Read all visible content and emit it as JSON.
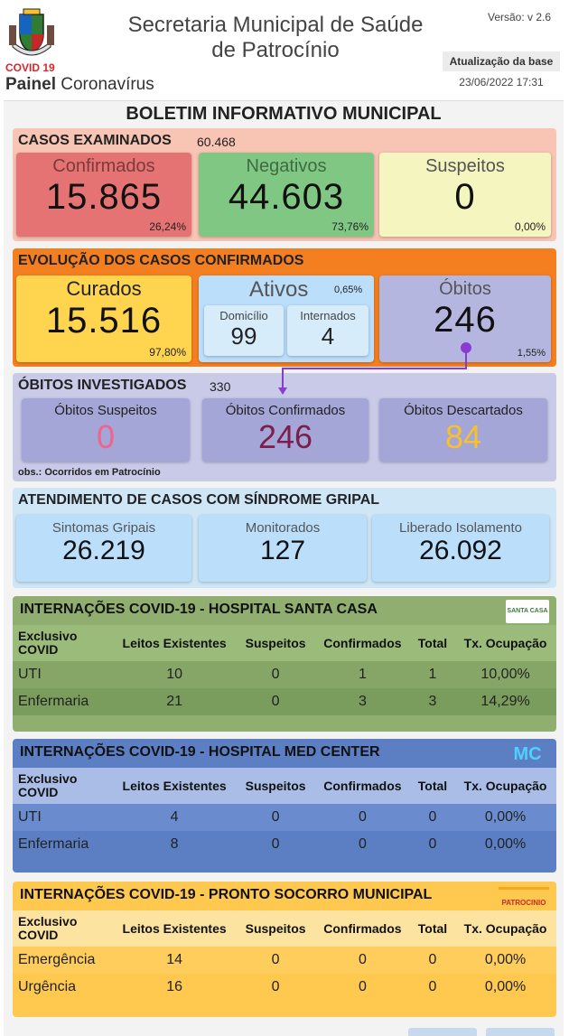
{
  "header": {
    "covid_label": "COVID 19",
    "painel_bold": "Painel",
    "painel_rest": " Coronavírus",
    "title_line1": "Secretaria Municipal de Saúde",
    "title_line2": "de Patrocínio",
    "version": "Versão: v 2.6",
    "update_label": "Atualização da base",
    "update_date": "23/06/2022 17:31"
  },
  "board_title": "BOLETIM INFORMATIVO MUNICIPAL",
  "casos": {
    "title": "CASOS EXAMINADOS",
    "total": "60.468",
    "confirmados": {
      "label": "Confirmados",
      "value": "15.865",
      "pct": "26,24%"
    },
    "negativos": {
      "label": "Negativos",
      "value": "44.603",
      "pct": "73,76%"
    },
    "suspeitos": {
      "label": "Suspeitos",
      "value": "0",
      "pct": "0,00%"
    }
  },
  "evolucao": {
    "title": "EVOLUÇÃO DOS CASOS CONFIRMADOS",
    "curados": {
      "label": "Curados",
      "value": "15.516",
      "pct": "97,80%"
    },
    "ativos": {
      "label": "Ativos",
      "pct": "0,65%",
      "domicilio_label": "Domicílio",
      "domicilio_value": "99",
      "internados_label": "Internados",
      "internados_value": "4"
    },
    "obitos": {
      "label": "Óbitos",
      "value": "246",
      "pct": "1,55%"
    }
  },
  "obitos_inv": {
    "title": "ÓBITOS INVESTIGADOS",
    "total": "330",
    "suspeitos": {
      "label": "Óbitos Suspeitos",
      "value": "0"
    },
    "confirmados": {
      "label": "Óbitos Confirmados",
      "value": "246"
    },
    "descartados": {
      "label": "Óbitos Descartados",
      "value": "84"
    },
    "obs": "obs.: Ocorridos em Patrocínio"
  },
  "atendimento": {
    "title": "ATENDIMENTO DE CASOS COM SÍNDROME GRIPAL",
    "sintomas": {
      "label": "Sintomas Gripais",
      "value": "26.219"
    },
    "monitorados": {
      "label": "Monitorados",
      "value": "127"
    },
    "liberado": {
      "label": "Liberado Isolamento",
      "value": "26.092"
    }
  },
  "tables": {
    "columns": [
      "Exclusivo COVID",
      "Leitos Existentes",
      "Suspeitos",
      "Confirmados",
      "Total",
      "Tx. Ocupação"
    ],
    "santa_casa": {
      "title": "INTERNAÇÕES COVID-19 - HOSPITAL SANTA CASA",
      "logo_text": "SANTA CASA",
      "rows": [
        [
          "UTI",
          "10",
          "0",
          "1",
          "1",
          "10,00%"
        ],
        [
          "Enfermaria",
          "21",
          "0",
          "3",
          "3",
          "14,29%"
        ]
      ]
    },
    "med_center": {
      "title": "INTERNAÇÕES COVID-19 - HOSPITAL MED CENTER",
      "logo_text": "MC",
      "rows": [
        [
          "UTI",
          "4",
          "0",
          "0",
          "0",
          "0,00%"
        ],
        [
          "Enfermaria",
          "8",
          "0",
          "0",
          "0",
          "0,00%"
        ]
      ]
    },
    "pronto_socorro": {
      "title": "INTERNAÇÕES COVID-19 - PRONTO SOCORRO MUNICIPAL",
      "logo_text": "PATROCINIO",
      "rows": [
        [
          "Emergência",
          "14",
          "0",
          "0",
          "0",
          "0,00%"
        ],
        [
          "Urgência",
          "16",
          "0",
          "0",
          "0",
          "0,00%"
        ]
      ]
    }
  },
  "colors": {
    "confirmados": "#e57373",
    "negativos": "#81c784",
    "suspeitos": "#f5f5c0",
    "curados": "#ffd54f",
    "ativos": "#bbdefb",
    "obitos": "#b4b6e0",
    "santa_casa": "#8fae6f",
    "med_center": "#5c7fc4",
    "pronto_socorro": "#ffc94f"
  }
}
